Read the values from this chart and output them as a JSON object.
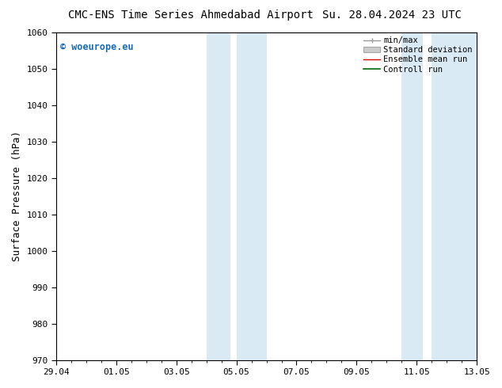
{
  "title": "CMC-ENS Time Series Ahmedabad Airport",
  "title_right": "Su. 28.04.2024 23 UTC",
  "ylabel": "Surface Pressure (hPa)",
  "ylim": [
    970,
    1060
  ],
  "yticks": [
    970,
    980,
    990,
    1000,
    1010,
    1020,
    1030,
    1040,
    1050,
    1060
  ],
  "xtick_labels": [
    "29.04",
    "01.05",
    "03.05",
    "05.05",
    "07.05",
    "09.05",
    "11.05",
    "13.05"
  ],
  "xtick_positions": [
    0,
    2,
    4,
    6,
    8,
    10,
    12,
    14
  ],
  "xlim": [
    0,
    14
  ],
  "shaded_bands": [
    {
      "x_start": 5.0,
      "x_end": 5.8
    },
    {
      "x_start": 6.0,
      "x_end": 7.0
    },
    {
      "x_start": 11.5,
      "x_end": 12.2
    },
    {
      "x_start": 12.5,
      "x_end": 14.0
    }
  ],
  "shaded_color": "#daeaf5",
  "watermark_text": "© woeurope.eu",
  "watermark_color": "#1a6bb5",
  "legend_entries": [
    {
      "label": "min/max",
      "color": "#999999",
      "lw": 1.0
    },
    {
      "label": "Standard deviation",
      "color": "#cccccc",
      "lw": 5
    },
    {
      "label": "Ensemble mean run",
      "color": "#dd0000",
      "lw": 1.0
    },
    {
      "label": "Controll run",
      "color": "#006600",
      "lw": 1.2
    }
  ],
  "bg_color": "#ffffff",
  "font_family": "DejaVu Sans Mono",
  "title_fontsize": 10,
  "tick_fontsize": 8,
  "ylabel_fontsize": 9,
  "legend_fontsize": 7.5
}
